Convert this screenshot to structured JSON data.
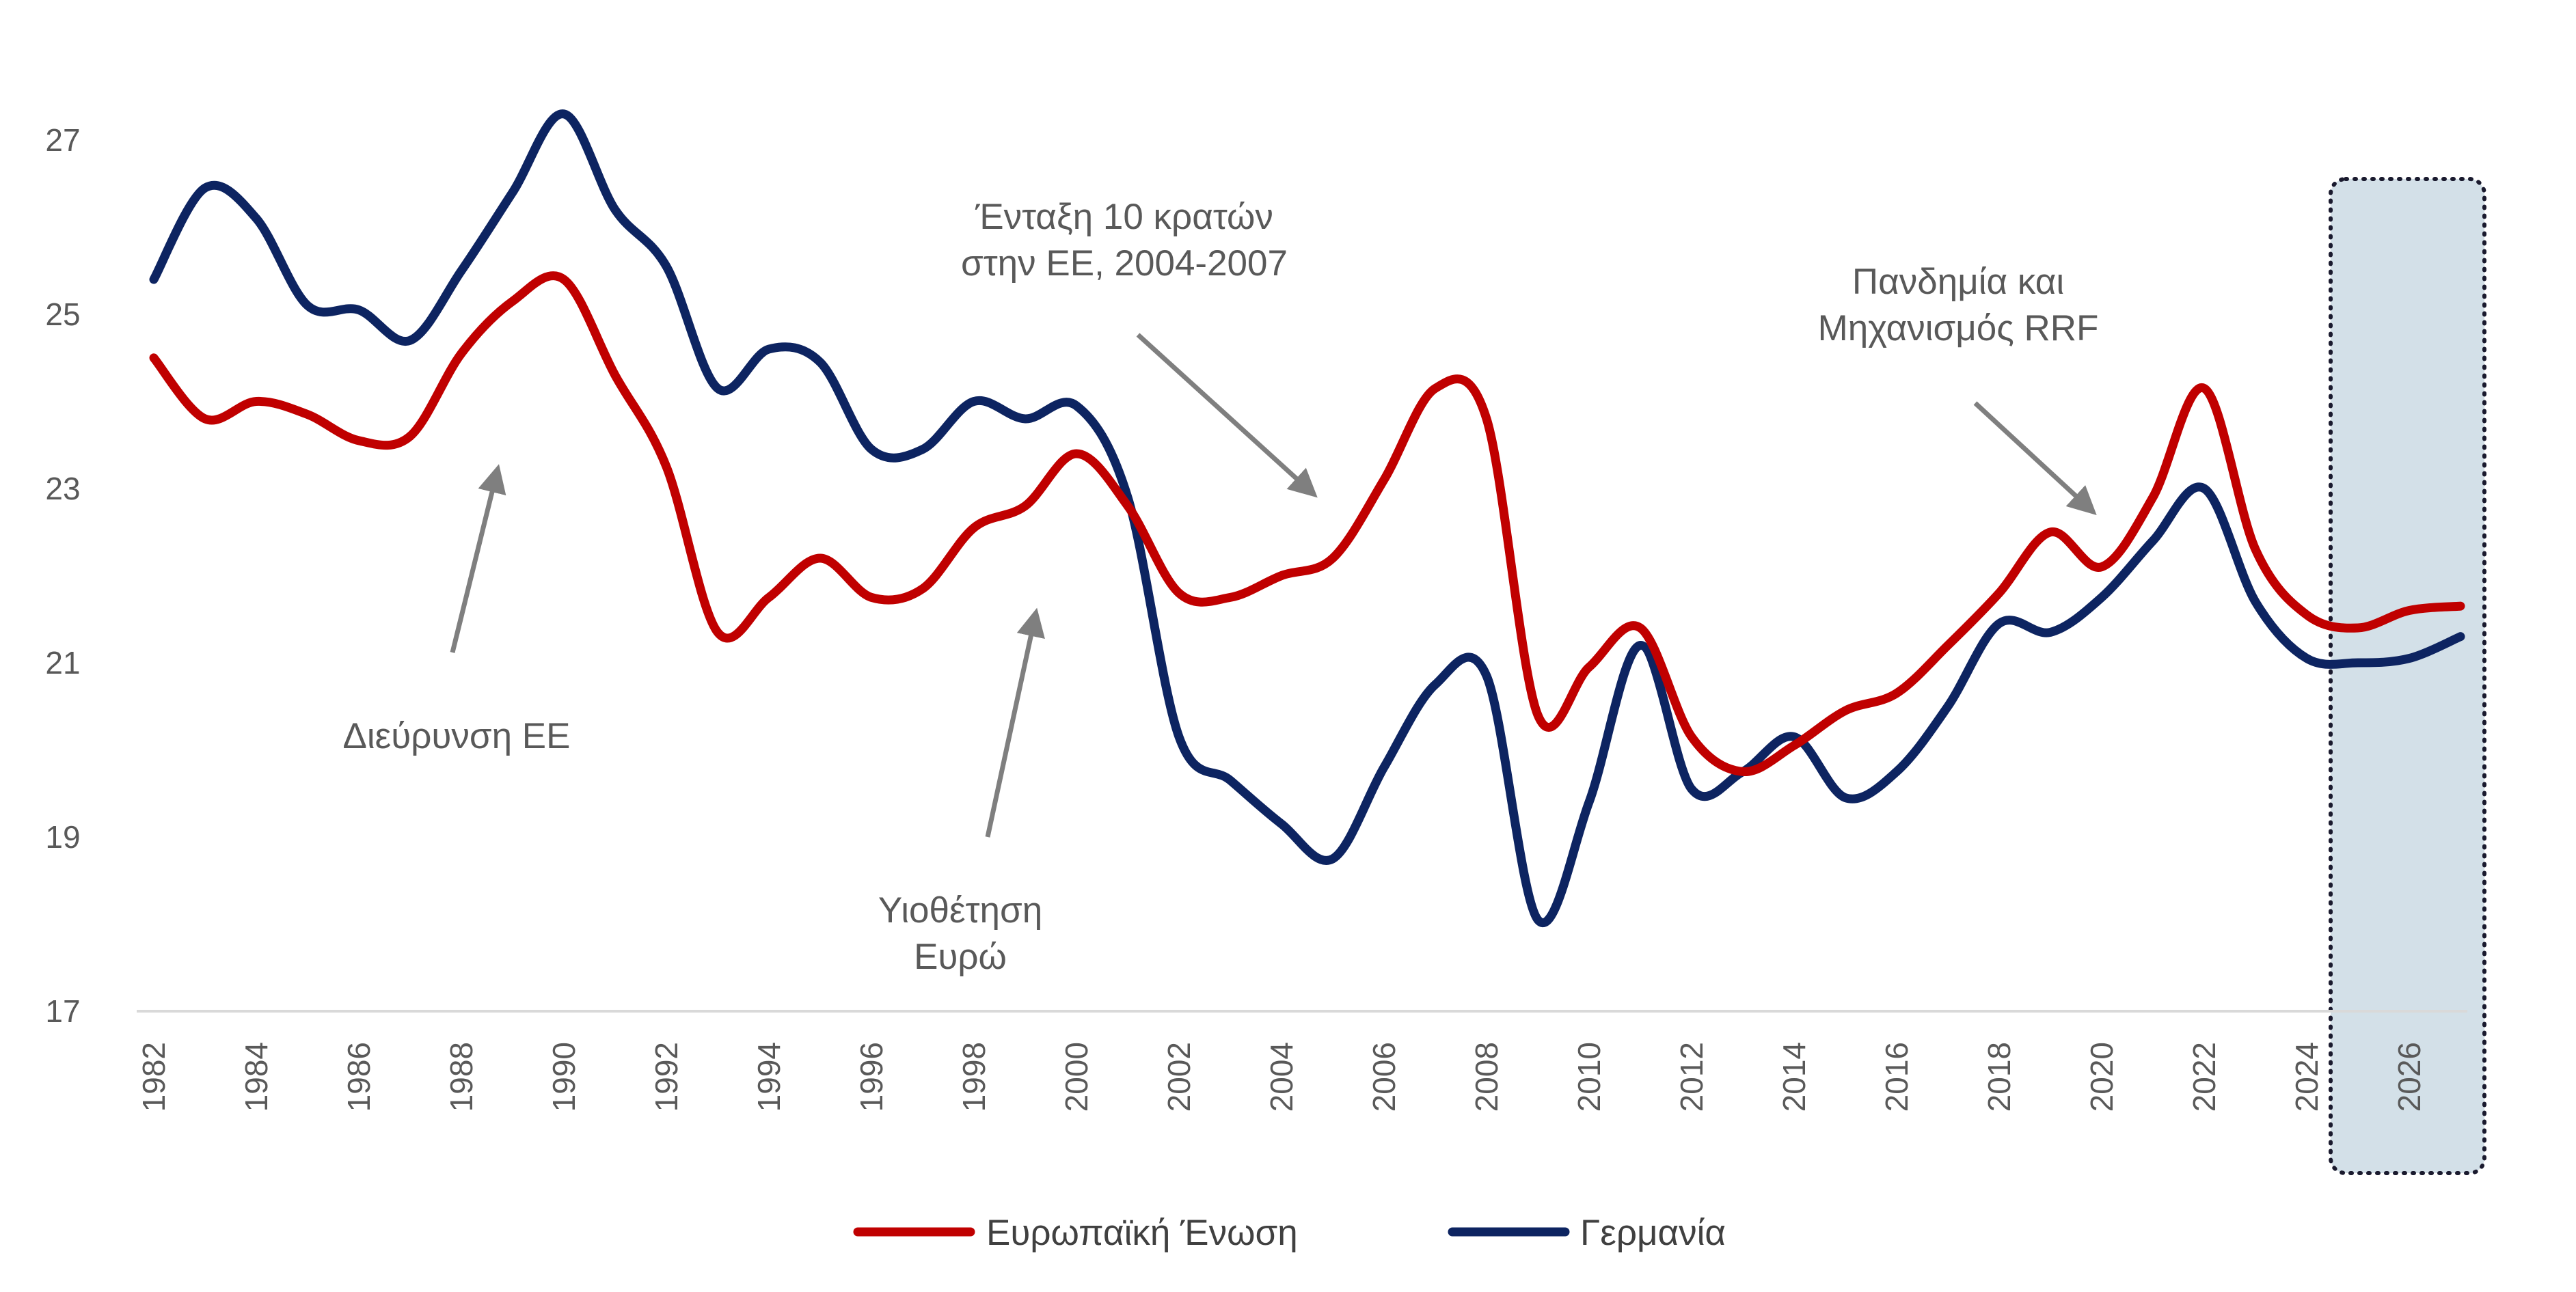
{
  "chart_data": {
    "type": "line",
    "title": "",
    "xlabel": "",
    "ylabel": "",
    "ylim": [
      17,
      28
    ],
    "xlim": [
      1982,
      2027
    ],
    "yticks": [
      17,
      19,
      21,
      23,
      25,
      27
    ],
    "xticks": [
      "1982",
      "1984",
      "1986",
      "1988",
      "1990",
      "1992",
      "1994",
      "1996",
      "1998",
      "2000",
      "2002",
      "2004",
      "2006",
      "2008",
      "2010",
      "2012",
      "2014",
      "2016",
      "2018",
      "2020",
      "2022",
      "2024",
      "2026"
    ],
    "grid": false,
    "legend_position": "bottom",
    "x": [
      1982,
      1983,
      1984,
      1985,
      1986,
      1987,
      1988,
      1989,
      1990,
      1991,
      1992,
      1993,
      1994,
      1995,
      1996,
      1997,
      1998,
      1999,
      2000,
      2001,
      2002,
      2003,
      2004,
      2005,
      2006,
      2007,
      2008,
      2009,
      2010,
      2011,
      2012,
      2013,
      2014,
      2015,
      2016,
      2017,
      2018,
      2019,
      2020,
      2021,
      2022,
      2023,
      2024,
      2025,
      2026,
      2027
    ],
    "series": [
      {
        "name": "Ευρωπαϊκή Ένωση",
        "color": "#c00000",
        "values": [
          24.5,
          23.8,
          24.0,
          23.85,
          23.55,
          23.6,
          24.55,
          25.15,
          25.4,
          24.3,
          23.25,
          21.35,
          21.75,
          22.2,
          21.75,
          21.85,
          22.55,
          22.8,
          23.4,
          22.8,
          21.8,
          21.75,
          22.0,
          22.2,
          23.1,
          24.15,
          23.8,
          20.4,
          20.95,
          21.4,
          20.15,
          19.75,
          20.05,
          20.45,
          20.65,
          21.2,
          21.8,
          22.5,
          22.1,
          22.9,
          24.15,
          22.3,
          21.55,
          21.4,
          21.6,
          21.65
        ]
      },
      {
        "name": "Γερμανία",
        "color": "#0d2461",
        "values": [
          25.4,
          26.45,
          26.1,
          25.1,
          25.05,
          24.7,
          25.5,
          26.4,
          27.3,
          26.2,
          25.55,
          24.15,
          24.6,
          24.45,
          23.45,
          23.45,
          24.0,
          23.8,
          23.95,
          22.9,
          20.15,
          19.65,
          19.15,
          18.75,
          19.8,
          20.75,
          20.85,
          18.05,
          19.4,
          21.2,
          19.55,
          19.75,
          20.15,
          19.45,
          19.75,
          20.5,
          21.45,
          21.35,
          21.75,
          22.4,
          23.0,
          21.7,
          21.05,
          21.0,
          21.05,
          21.3
        ]
      }
    ],
    "annotations": [
      {
        "text": [
          "Διεύρυνση ΕΕ"
        ],
        "target_x": 1988.7,
        "target_y": 23.2
      },
      {
        "text": [
          "Υιοθέτηση",
          "Ευρώ"
        ],
        "target_x": 1999.2,
        "target_y": 21.55
      },
      {
        "text": [
          "Ένταξη 10 κρατών",
          "στην ΕΕ, 2004-2007"
        ],
        "target_x": 2004.6,
        "target_y": 22.95
      },
      {
        "text": [
          "Πανδημία και",
          "Μηχανισμός RRF"
        ],
        "target_x": 2019.8,
        "target_y": 22.75
      }
    ],
    "forecast_region": {
      "from": 2025,
      "to": 2027,
      "color": "#d3e0e8"
    }
  }
}
